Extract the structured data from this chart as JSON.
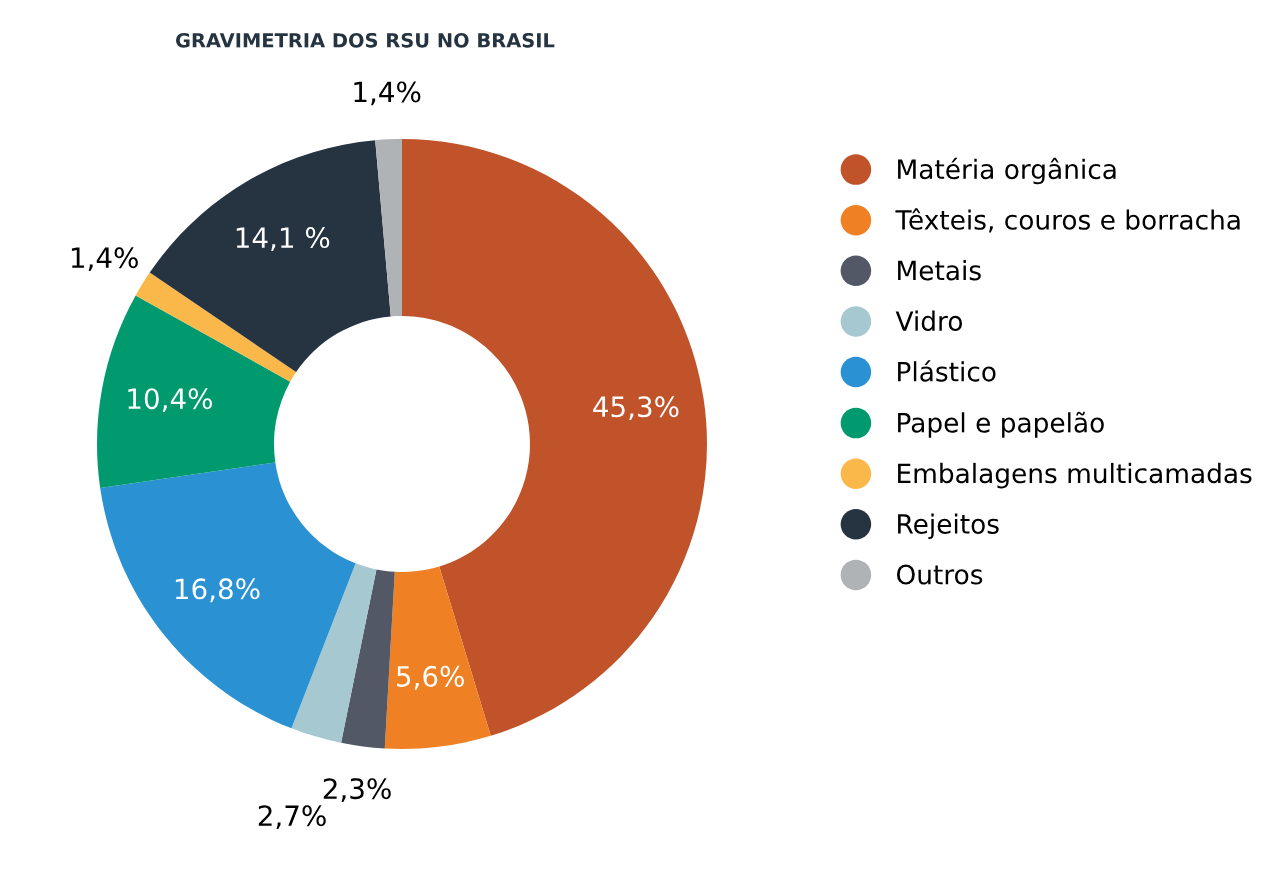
{
  "chart_data": {
    "type": "donut",
    "title": "GRAVIMETRIA DOS RSU NO BRASIL",
    "categories": [
      "Matéria orgânica",
      "Têxteis, couros e borracha",
      "Metais",
      "Vidro",
      "Plástico",
      "Papel e papelão",
      "Embalagens multicamadas",
      "Rejeitos",
      "Outros"
    ],
    "values": [
      45.3,
      5.6,
      2.3,
      2.7,
      16.8,
      10.4,
      1.4,
      14.1,
      1.4
    ],
    "value_labels": [
      "45,3%",
      "5,6%",
      "2,3%",
      "2,7%",
      "16,8%",
      "10,4%",
      "1,4%",
      "14,1 %",
      "1,4%"
    ],
    "colors": [
      "#c0532a",
      "#f08024",
      "#525866",
      "#a6c8d0",
      "#2a92d2",
      "#009a6e",
      "#fbb84a",
      "#263340",
      "#b0b3b6"
    ],
    "legend": "right"
  }
}
